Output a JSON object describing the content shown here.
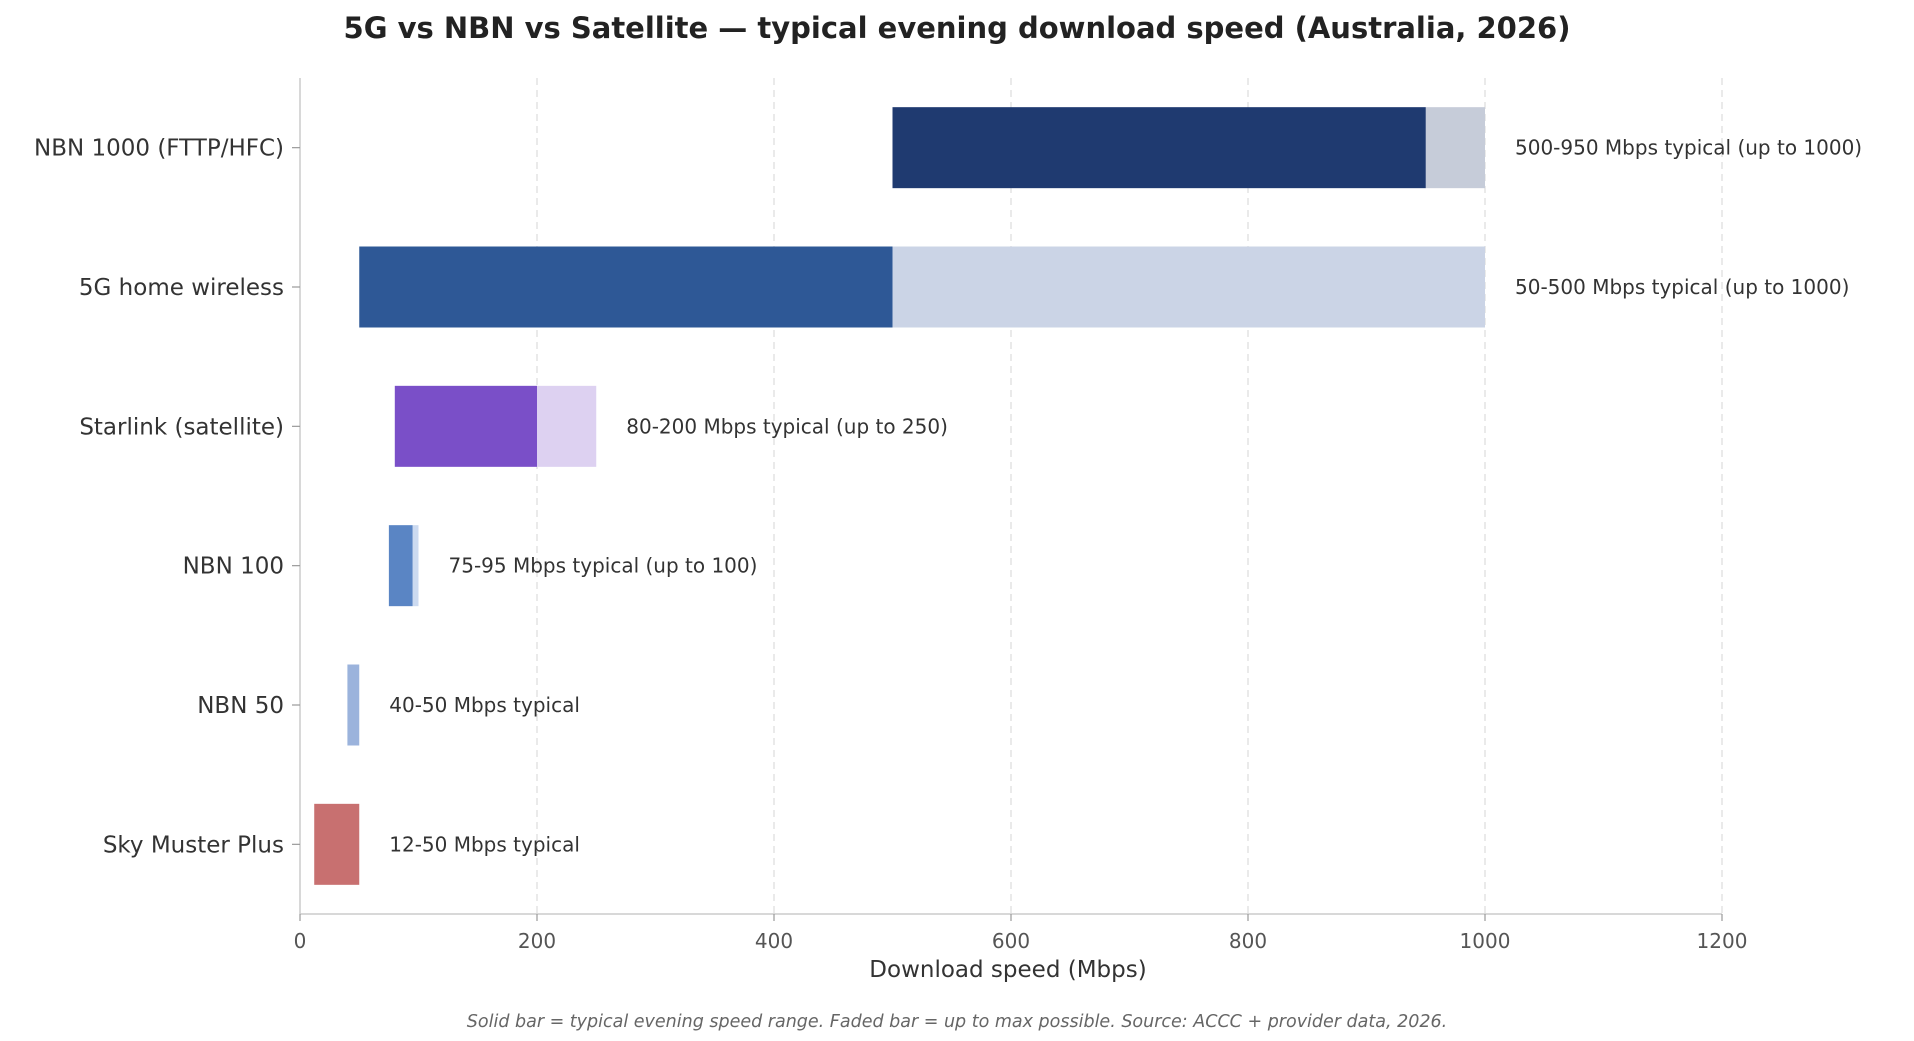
{
  "chart_data": {
    "type": "bar",
    "orientation": "horizontal",
    "title": "5G vs NBN vs Satellite — typical evening download speed (Australia, 2026)",
    "xlabel": "Download speed (Mbps)",
    "ylabel": "",
    "xlim": [
      0,
      1200
    ],
    "xticks": [
      0,
      200,
      400,
      600,
      800,
      1000,
      1200
    ],
    "grid": "x-dashed",
    "categories": [
      "NBN 1000 (FTTP/HFC)",
      "5G home wireless",
      "Starlink (satellite)",
      "NBN 100",
      "NBN 50",
      "Sky Muster Plus"
    ],
    "series": [
      {
        "name": "typical",
        "low": [
          500,
          50,
          80,
          75,
          40,
          12
        ],
        "high": [
          950,
          500,
          200,
          95,
          50,
          50
        ]
      },
      {
        "name": "max",
        "values": [
          1000,
          1000,
          250,
          100,
          50,
          50
        ]
      }
    ],
    "annotations": [
      "500-950 Mbps typical  (up to 1000)",
      "50-500 Mbps typical  (up to 1000)",
      "80-200 Mbps typical  (up to 250)",
      "75-95 Mbps typical  (up to 100)",
      "40-50 Mbps typical",
      "12-50 Mbps typical"
    ],
    "colors": {
      "typical": [
        "#1f3a70",
        "#2e5896",
        "#7a4fc8",
        "#5a85c4",
        "#9bb3dc",
        "#c87070"
      ],
      "max": [
        "#c6ccd9",
        "#cbd4e6",
        "#ddd1f1",
        "#ccdaf0",
        "#9bb3dc",
        "#c87070"
      ]
    },
    "footnote": "Solid bar = typical evening speed range. Faded bar = up to max possible. Source: ACCC + provider data, 2026."
  }
}
